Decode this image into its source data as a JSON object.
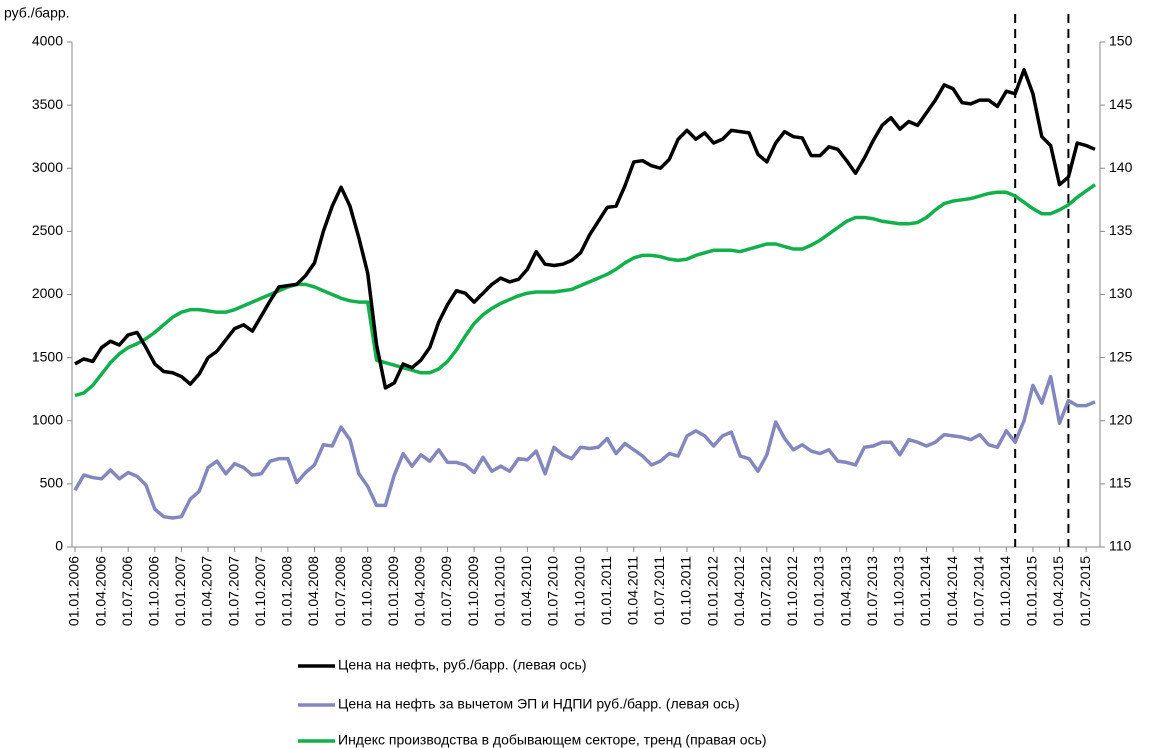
{
  "chart_data": {
    "type": "line",
    "y_label": "руб./барр.",
    "categories": [
      "01.01.2006",
      null,
      null,
      "01.04.2006",
      null,
      null,
      "01.07.2006",
      null,
      null,
      "01.10.2006",
      null,
      null,
      "01.01.2007",
      null,
      null,
      "01.04.2007",
      null,
      null,
      "01.07.2007",
      null,
      null,
      "01.10.2007",
      null,
      null,
      "01.01.2008",
      null,
      null,
      "01.04.2008",
      null,
      null,
      "01.07.2008",
      null,
      null,
      "01.10.2008",
      null,
      null,
      "01.01.2009",
      null,
      null,
      "01.04.2009",
      null,
      null,
      "01.07.2009",
      null,
      null,
      "01.10.2009",
      null,
      null,
      "01.01.2010",
      null,
      null,
      "01.04.2010",
      null,
      null,
      "01.07.2010",
      null,
      null,
      "01.10.2010",
      null,
      null,
      "01.01.2011",
      null,
      null,
      "01.04.2011",
      null,
      null,
      "01.07.2011",
      null,
      null,
      "01.10.2011",
      null,
      null,
      "01.01.2012",
      null,
      null,
      "01.04.2012",
      null,
      null,
      "01.07.2012",
      null,
      null,
      "01.10.2012",
      null,
      null,
      "01.01.2013",
      null,
      null,
      "01.04.2013",
      null,
      null,
      "01.07.2013",
      null,
      null,
      "01.10.2013",
      null,
      null,
      "01.01.2014",
      null,
      null,
      "01.04.2014",
      null,
      null,
      "01.07.2014",
      null,
      null,
      "01.10.2014",
      null,
      null,
      "01.01.2015",
      null,
      null,
      "01.04.2015",
      null,
      null,
      "01.07.2015",
      null
    ],
    "series": [
      {
        "name": "Цена на нефть, руб./барр. (левая ось)",
        "color": "#000000",
        "values": [
          1450,
          1490,
          1470,
          1580,
          1630,
          1600,
          1680,
          1700,
          1580,
          1450,
          1390,
          1380,
          1350,
          1290,
          1370,
          1500,
          1550,
          1640,
          1730,
          1760,
          1710,
          1830,
          1950,
          2060,
          2070,
          2080,
          2150,
          2250,
          2500,
          2700,
          2850,
          2700,
          2450,
          2170,
          1600,
          1260,
          1300,
          1450,
          1420,
          1480,
          1580,
          1780,
          1920,
          2030,
          2010,
          1940,
          2010,
          2080,
          2130,
          2100,
          2120,
          2200,
          2340,
          2240,
          2230,
          2240,
          2270,
          2330,
          2470,
          2580,
          2690,
          2700,
          2860,
          3050,
          3060,
          3020,
          3000,
          3070,
          3230,
          3300,
          3230,
          3280,
          3200,
          3230,
          3300,
          3290,
          3280,
          3110,
          3050,
          3200,
          3290,
          3250,
          3240,
          3100,
          3100,
          3170,
          3150,
          3060,
          2960,
          3080,
          3220,
          3340,
          3400,
          3310,
          3370,
          3340,
          3440,
          3540,
          3660,
          3630,
          3520,
          3510,
          3540,
          3540,
          3490,
          3610,
          3590,
          3780,
          3590,
          3250,
          3180,
          2870,
          2930,
          3200,
          3180,
          3150
        ]
      },
      {
        "name": "Цена на нефть за вычетом ЭП и НДПИ руб./барр. (левая ось)",
        "color": "#8387bd",
        "values": [
          450,
          570,
          550,
          540,
          610,
          540,
          590,
          560,
          490,
          300,
          240,
          230,
          240,
          380,
          440,
          630,
          680,
          580,
          660,
          630,
          570,
          580,
          680,
          700,
          700,
          510,
          590,
          650,
          810,
          800,
          950,
          850,
          580,
          480,
          330,
          330,
          570,
          740,
          640,
          730,
          680,
          770,
          670,
          670,
          650,
          590,
          710,
          600,
          640,
          600,
          700,
          690,
          760,
          580,
          790,
          730,
          700,
          790,
          780,
          790,
          860,
          740,
          820,
          770,
          720,
          650,
          680,
          740,
          720,
          880,
          920,
          880,
          800,
          880,
          910,
          720,
          700,
          600,
          730,
          990,
          860,
          770,
          810,
          760,
          740,
          770,
          680,
          670,
          650,
          790,
          800,
          830,
          830,
          730,
          850,
          830,
          800,
          830,
          890,
          880,
          870,
          850,
          890,
          810,
          790,
          920,
          830,
          1000,
          1280,
          1140,
          1350,
          980,
          1160,
          1120,
          1120,
          1150
        ]
      },
      {
        "name": "Индекс производства в добывающем секторе, тренд (правая ось)",
        "color": "#11b04b",
        "axis": "y2",
        "values": [
          122.0,
          122.2,
          122.8,
          123.7,
          124.6,
          125.3,
          125.8,
          126.1,
          126.5,
          127.0,
          127.6,
          128.2,
          128.6,
          128.8,
          128.8,
          128.7,
          128.6,
          128.6,
          128.8,
          129.1,
          129.4,
          129.7,
          130.0,
          130.3,
          130.6,
          130.8,
          130.8,
          130.6,
          130.3,
          130.0,
          129.7,
          129.5,
          129.4,
          129.4,
          124.8,
          124.6,
          124.4,
          124.2,
          124.0,
          123.8,
          123.8,
          124.1,
          124.7,
          125.6,
          126.7,
          127.7,
          128.4,
          128.9,
          129.3,
          129.6,
          129.9,
          130.1,
          130.2,
          130.2,
          130.2,
          130.3,
          130.4,
          130.7,
          131.0,
          131.3,
          131.6,
          132.0,
          132.5,
          132.9,
          133.1,
          133.1,
          133.0,
          132.8,
          132.7,
          132.8,
          133.1,
          133.3,
          133.5,
          133.5,
          133.5,
          133.4,
          133.6,
          133.8,
          134.0,
          134.0,
          133.8,
          133.6,
          133.6,
          133.9,
          134.3,
          134.8,
          135.3,
          135.8,
          136.1,
          136.1,
          136.0,
          135.8,
          135.7,
          135.6,
          135.6,
          135.7,
          136.1,
          136.7,
          137.2,
          137.4,
          137.5,
          137.6,
          137.8,
          138.0,
          138.1,
          138.1,
          137.8,
          137.3,
          136.8,
          136.4,
          136.4,
          136.7,
          137.1,
          137.7,
          138.2,
          138.7
        ]
      }
    ],
    "ylim": [
      0,
      4000
    ],
    "yticks": [
      0,
      500,
      1000,
      1500,
      2000,
      2500,
      3000,
      3500,
      4000
    ],
    "y2lim": [
      110,
      150
    ],
    "y2ticks": [
      110,
      115,
      120,
      125,
      130,
      135,
      140,
      145,
      150
    ],
    "vlines": [
      106,
      112
    ],
    "grid": false,
    "legend": "bottom"
  }
}
